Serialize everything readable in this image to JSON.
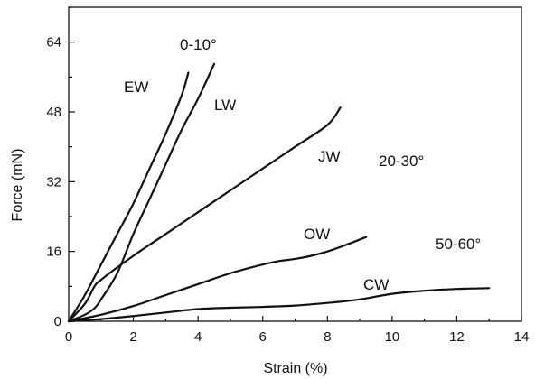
{
  "chart_data": {
    "type": "line",
    "title": "",
    "xlabel": "Strain (%)",
    "ylabel": "Force (mN)",
    "xlim": [
      0,
      14
    ],
    "ylim": [
      0,
      72
    ],
    "x_ticks": [
      0,
      2,
      4,
      6,
      8,
      10,
      12,
      14
    ],
    "y_ticks": [
      0,
      16,
      32,
      48,
      64
    ],
    "grid": false,
    "legend": "none",
    "line_color": "#111111",
    "series": [
      {
        "name": "EW",
        "x": [
          0,
          0.5,
          1.0,
          1.5,
          2.0,
          2.5,
          3.0,
          3.5,
          3.7
        ],
        "y": [
          0,
          6,
          13,
          20,
          27,
          35,
          43,
          52,
          57
        ]
      },
      {
        "name": "LW",
        "x": [
          0,
          0.5,
          0.8,
          1.0,
          1.5,
          2.0,
          2.5,
          3.0,
          3.5,
          4.0,
          4.5
        ],
        "y": [
          0,
          1.5,
          3,
          5,
          11,
          20,
          28,
          36,
          44,
          51,
          59
        ]
      },
      {
        "name": "JW",
        "x": [
          0,
          0.5,
          0.8,
          1.0,
          2.0,
          3.0,
          4.0,
          5.0,
          6.0,
          7.0,
          8.0,
          8.4
        ],
        "y": [
          0,
          4,
          8,
          9.5,
          15,
          20,
          25,
          30,
          35,
          40,
          45,
          49
        ]
      },
      {
        "name": "OW",
        "x": [
          0,
          1.0,
          2.0,
          3.0,
          4.0,
          5.0,
          6.0,
          6.5,
          7.0,
          7.5,
          8.0,
          8.5,
          9.2
        ],
        "y": [
          0,
          1.5,
          3.5,
          6,
          8.5,
          11,
          13,
          13.8,
          14.3,
          15,
          16,
          17.3,
          19.3
        ]
      },
      {
        "name": "CW",
        "x": [
          0,
          1.0,
          2.0,
          3.0,
          4.0,
          5.0,
          6.0,
          7.0,
          8.0,
          9.0,
          10.0,
          11.0,
          12.0,
          13.0
        ],
        "y": [
          0,
          0.5,
          1.2,
          2,
          2.8,
          3.1,
          3.3,
          3.6,
          4.2,
          5,
          6.3,
          7,
          7.4,
          7.6
        ]
      }
    ],
    "annotations": [
      "0-10°",
      "20-30°",
      "50-60°"
    ]
  }
}
